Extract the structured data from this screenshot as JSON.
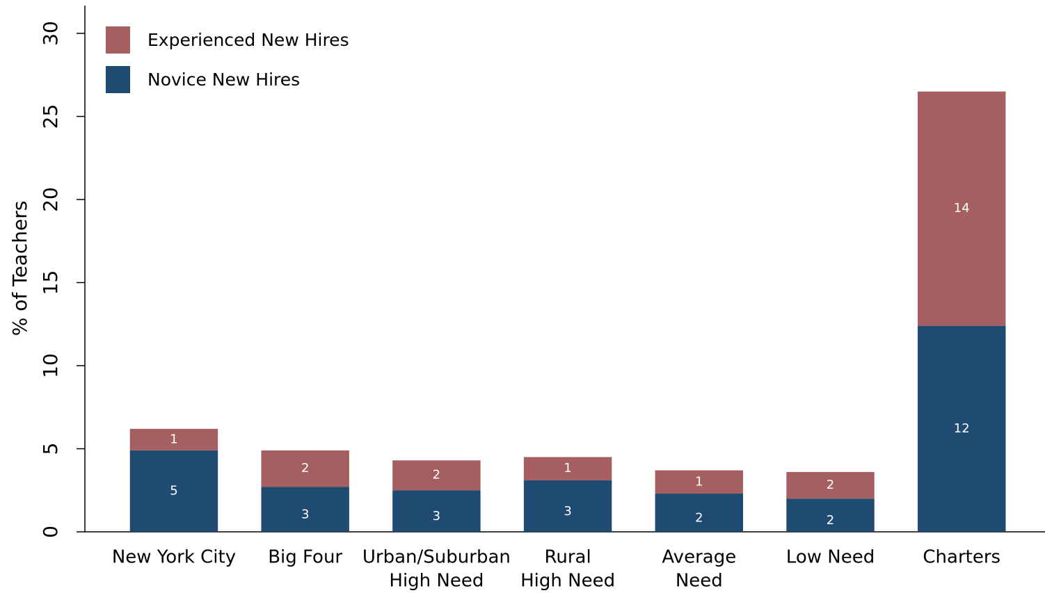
{
  "chart_data": {
    "type": "stacked_bar",
    "ylabel": "% of Teachers",
    "categories": [
      [
        "New York City"
      ],
      [
        "Big Four"
      ],
      [
        "Urban/Suburban",
        "High Need"
      ],
      [
        "Rural",
        "High Need"
      ],
      [
        "Average",
        "Need"
      ],
      [
        "Low Need"
      ],
      [
        "Charters"
      ]
    ],
    "series": [
      {
        "name": "Novice New Hires",
        "color": "#1f4a72",
        "values": [
          4.9,
          2.7,
          2.5,
          3.1,
          2.3,
          2.0,
          12.4
        ],
        "value_labels": [
          "5",
          "3",
          "3",
          "3",
          "2",
          "2",
          "12"
        ]
      },
      {
        "name": "Experienced New Hires",
        "color": "#a65f60",
        "values": [
          1.3,
          2.2,
          1.8,
          1.4,
          1.4,
          1.6,
          14.1
        ],
        "value_labels": [
          "1",
          "2",
          "2",
          "1",
          "1",
          "2",
          "14"
        ]
      }
    ],
    "ylim": [
      0,
      30
    ],
    "yticks": [
      0,
      5,
      10,
      15,
      20,
      25,
      30
    ],
    "grid": false,
    "legend": "upper left"
  }
}
